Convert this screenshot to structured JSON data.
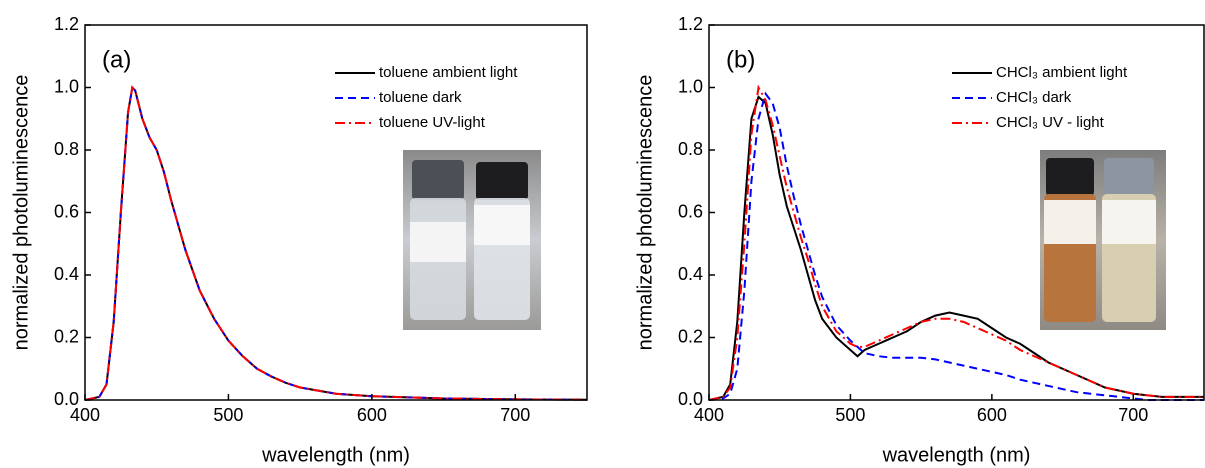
{
  "chart_data": [
    {
      "type": "line",
      "annotation": "(a)",
      "xlabel": "wavelength (nm)",
      "ylabel": "normalized photoluminescence",
      "x": [
        400,
        410,
        415,
        420,
        425,
        430,
        433,
        435,
        440,
        445,
        450,
        455,
        460,
        470,
        480,
        490,
        500,
        510,
        520,
        530,
        540,
        550,
        575,
        600,
        650,
        700,
        750
      ],
      "series": [
        {
          "name": "toluene ambient light",
          "color": "#000000",
          "dash": "solid",
          "values": [
            0,
            0.01,
            0.05,
            0.25,
            0.6,
            0.92,
            1.0,
            0.99,
            0.9,
            0.84,
            0.8,
            0.73,
            0.64,
            0.48,
            0.35,
            0.26,
            0.19,
            0.14,
            0.1,
            0.075,
            0.055,
            0.04,
            0.02,
            0.012,
            0.005,
            0.002,
            0.001
          ]
        },
        {
          "name": "toluene dark",
          "color": "#0000ff",
          "dash": "dashed",
          "values": [
            0,
            0.01,
            0.05,
            0.25,
            0.6,
            0.92,
            1.0,
            0.99,
            0.9,
            0.84,
            0.8,
            0.73,
            0.64,
            0.48,
            0.35,
            0.26,
            0.19,
            0.14,
            0.1,
            0.075,
            0.055,
            0.04,
            0.02,
            0.012,
            0.005,
            0.002,
            0.001
          ]
        },
        {
          "name": "toluene UV-light",
          "color": "#ff0000",
          "dash": "dashdot",
          "values": [
            0,
            0.01,
            0.05,
            0.25,
            0.6,
            0.92,
            1.0,
            0.99,
            0.9,
            0.84,
            0.8,
            0.73,
            0.64,
            0.48,
            0.35,
            0.26,
            0.19,
            0.14,
            0.1,
            0.075,
            0.055,
            0.04,
            0.02,
            0.012,
            0.005,
            0.002,
            0.001
          ]
        }
      ],
      "xlim": [
        400,
        750
      ],
      "xticks": [
        400,
        500,
        600,
        700
      ],
      "ylim": [
        0,
        1.2
      ],
      "yticks": [
        {
          "value": 0,
          "label": "0.0"
        },
        0.2,
        0.4,
        0.6,
        0.8,
        {
          "value": 1,
          "label": "1.0"
        },
        1.2
      ],
      "grid": false,
      "legend": "upper right"
    },
    {
      "type": "line",
      "annotation": "(b)",
      "xlabel": "wavelength (nm)",
      "ylabel": "normalized photoluminescence",
      "x": [
        400,
        410,
        415,
        420,
        425,
        430,
        435,
        440,
        445,
        450,
        455,
        460,
        465,
        470,
        475,
        480,
        490,
        500,
        505,
        510,
        520,
        530,
        540,
        550,
        560,
        570,
        580,
        590,
        600,
        610,
        620,
        630,
        640,
        650,
        660,
        670,
        680,
        690,
        700,
        710,
        720,
        730,
        740,
        750
      ],
      "series": [
        {
          "name": "CHCl₃ ambient light",
          "color": "#000000",
          "dash": "solid",
          "values": [
            0,
            0.01,
            0.05,
            0.25,
            0.6,
            0.9,
            0.97,
            0.95,
            0.85,
            0.72,
            0.62,
            0.55,
            0.48,
            0.4,
            0.32,
            0.26,
            0.2,
            0.16,
            0.14,
            0.16,
            0.18,
            0.2,
            0.22,
            0.25,
            0.27,
            0.28,
            0.27,
            0.26,
            0.23,
            0.2,
            0.18,
            0.15,
            0.12,
            0.1,
            0.08,
            0.06,
            0.04,
            0.03,
            0.02,
            0.015,
            0.01,
            0.01,
            0.01,
            0.01
          ]
        },
        {
          "name": "CHCl₃ dark",
          "color": "#0000ff",
          "dash": "dashed",
          "values": [
            0,
            0.005,
            0.02,
            0.1,
            0.35,
            0.7,
            0.9,
            0.98,
            0.95,
            0.87,
            0.75,
            0.65,
            0.56,
            0.48,
            0.4,
            0.33,
            0.24,
            0.19,
            0.17,
            0.15,
            0.14,
            0.135,
            0.135,
            0.135,
            0.13,
            0.12,
            0.11,
            0.1,
            0.09,
            0.08,
            0.065,
            0.055,
            0.045,
            0.035,
            0.025,
            0.02,
            0.015,
            0.01,
            0.005,
            0,
            0,
            0,
            0,
            0
          ]
        },
        {
          "name": "CHCl₃ UV - light",
          "color": "#ff0000",
          "dash": "dashdot",
          "values": [
            0,
            0.01,
            0.04,
            0.2,
            0.5,
            0.85,
            1.0,
            0.96,
            0.88,
            0.78,
            0.68,
            0.6,
            0.52,
            0.45,
            0.37,
            0.3,
            0.22,
            0.18,
            0.17,
            0.17,
            0.19,
            0.21,
            0.23,
            0.25,
            0.26,
            0.26,
            0.25,
            0.23,
            0.21,
            0.19,
            0.16,
            0.14,
            0.12,
            0.1,
            0.08,
            0.06,
            0.04,
            0.03,
            0.02,
            0.015,
            0.01,
            0.01,
            0.01,
            0.01
          ]
        }
      ],
      "xlim": [
        400,
        750
      ],
      "xticks": [
        400,
        500,
        600,
        700
      ],
      "ylim": [
        0,
        1.2
      ],
      "yticks": [
        {
          "value": 0,
          "label": "0.0"
        },
        0.2,
        0.4,
        0.6,
        0.8,
        {
          "value": 1,
          "label": "1.0"
        },
        1.2
      ],
      "grid": false,
      "legend": "upper right"
    }
  ]
}
